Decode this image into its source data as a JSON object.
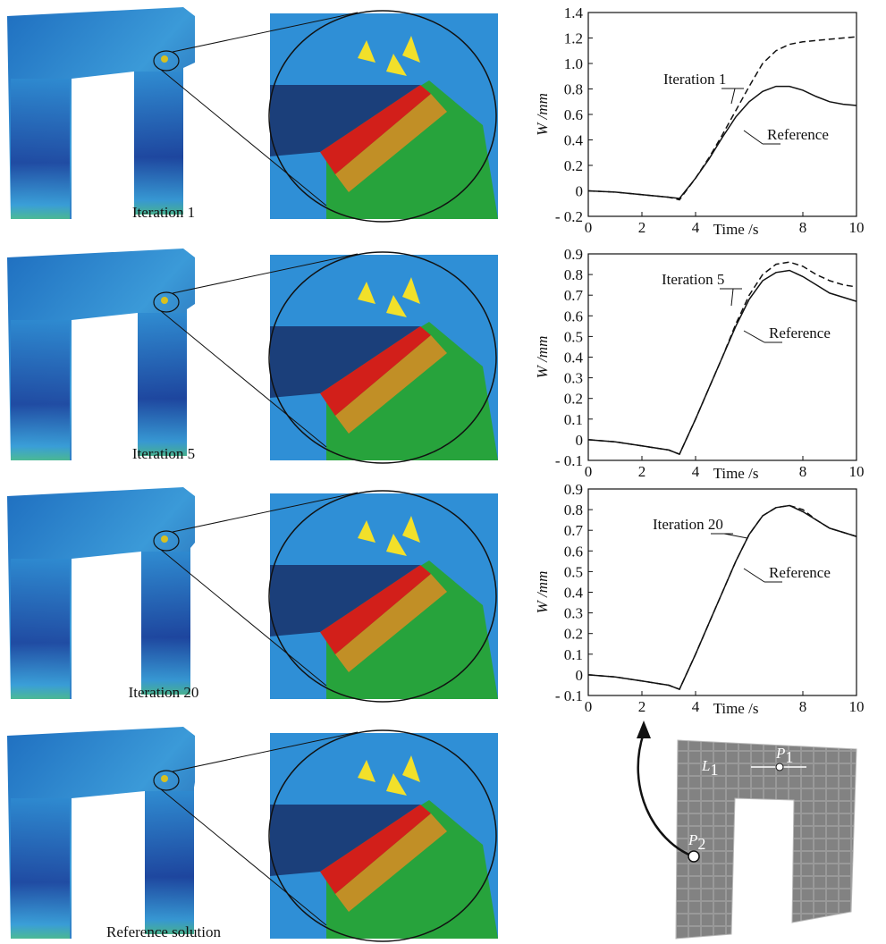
{
  "panels": [
    {
      "label": "Iteration 1"
    },
    {
      "label": "Iteration 5"
    },
    {
      "label": "Iteration 20"
    },
    {
      "label": "Reference solution"
    }
  ],
  "chart_data": [
    {
      "type": "line",
      "xlabel": "Time /s",
      "ylabel": "W /mm",
      "xlim": [
        0,
        10
      ],
      "xticks": [
        0,
        2,
        4,
        8,
        10
      ],
      "ylim": [
        -0.2,
        1.4
      ],
      "yticks": [
        {
          "value": -0.2,
          "label": "- 0.2"
        },
        0,
        0.2,
        0.4,
        0.6,
        0.8,
        {
          "value": 1.0,
          "label": "1.0"
        },
        1.2,
        1.4
      ],
      "x": [
        0,
        1,
        2,
        3,
        3.4,
        4,
        4.5,
        5,
        5.5,
        6,
        6.5,
        7,
        7.5,
        8,
        8.5,
        9,
        9.5,
        10
      ],
      "series": [
        {
          "name": "Iteration 1",
          "color": "#111111",
          "dashed": true,
          "values": [
            0,
            -0.01,
            -0.03,
            -0.05,
            -0.07,
            0.1,
            0.26,
            0.44,
            0.63,
            0.82,
            1.0,
            1.1,
            1.15,
            1.17,
            1.18,
            1.19,
            1.2,
            1.21
          ]
        },
        {
          "name": "Reference",
          "color": "#111111",
          "dashed": false,
          "values": [
            0,
            -0.01,
            -0.03,
            -0.05,
            -0.06,
            0.1,
            0.25,
            0.42,
            0.58,
            0.7,
            0.78,
            0.82,
            0.82,
            0.79,
            0.74,
            0.7,
            0.68,
            0.67
          ]
        }
      ]
    },
    {
      "type": "line",
      "xlabel": "Time /s",
      "ylabel": "W /mm",
      "xlim": [
        0,
        10
      ],
      "xticks": [
        0,
        2,
        4,
        8,
        10
      ],
      "ylim": [
        -0.1,
        0.9
      ],
      "yticks": [
        {
          "value": -0.1,
          "label": "- 0.1"
        },
        0,
        0.1,
        0.2,
        0.3,
        0.4,
        0.5,
        0.6,
        0.7,
        0.8,
        0.9
      ],
      "x": [
        0,
        1,
        2,
        3,
        3.4,
        4,
        4.5,
        5,
        5.5,
        6,
        6.5,
        7,
        7.5,
        8,
        8.5,
        9,
        9.5,
        10
      ],
      "series": [
        {
          "name": "Iteration 5",
          "color": "#111111",
          "dashed": true,
          "values": [
            0,
            -0.01,
            -0.03,
            -0.05,
            -0.07,
            0.1,
            0.25,
            0.4,
            0.56,
            0.7,
            0.8,
            0.85,
            0.86,
            0.84,
            0.8,
            0.77,
            0.75,
            0.74
          ]
        },
        {
          "name": "Reference",
          "color": "#111111",
          "dashed": false,
          "values": [
            0,
            -0.01,
            -0.03,
            -0.05,
            -0.07,
            0.1,
            0.25,
            0.4,
            0.55,
            0.68,
            0.77,
            0.81,
            0.82,
            0.79,
            0.75,
            0.71,
            0.69,
            0.67
          ]
        }
      ]
    },
    {
      "type": "line",
      "xlabel": "Time /s",
      "ylabel": "W /mm",
      "xlim": [
        0,
        10
      ],
      "xticks": [
        0,
        2,
        4,
        8,
        10
      ],
      "ylim": [
        -0.1,
        0.9
      ],
      "yticks": [
        {
          "value": -0.1,
          "label": "- 0.1"
        },
        0,
        0.1,
        0.2,
        0.3,
        0.4,
        0.5,
        0.6,
        0.7,
        0.8,
        0.9
      ],
      "x": [
        0,
        1,
        2,
        3,
        3.4,
        4,
        4.5,
        5,
        5.5,
        6,
        6.5,
        7,
        7.5,
        8,
        8.5,
        9,
        9.5,
        10
      ],
      "series": [
        {
          "name": "Iteration 20",
          "color": "#111111",
          "dashed": true,
          "values": [
            0,
            -0.01,
            -0.03,
            -0.05,
            -0.07,
            0.1,
            0.25,
            0.4,
            0.55,
            0.68,
            0.77,
            0.81,
            0.82,
            0.8,
            0.75,
            0.71,
            0.69,
            0.67
          ]
        },
        {
          "name": "Reference",
          "color": "#111111",
          "dashed": false,
          "values": [
            0,
            -0.01,
            -0.03,
            -0.05,
            -0.07,
            0.1,
            0.25,
            0.4,
            0.55,
            0.68,
            0.77,
            0.81,
            0.82,
            0.79,
            0.75,
            0.71,
            0.69,
            0.67
          ]
        }
      ]
    }
  ],
  "schematic": {
    "labels": [
      {
        "main": "L",
        "sub": "1"
      },
      {
        "main": "P",
        "sub": "1"
      },
      {
        "main": "P",
        "sub": "2"
      }
    ]
  }
}
